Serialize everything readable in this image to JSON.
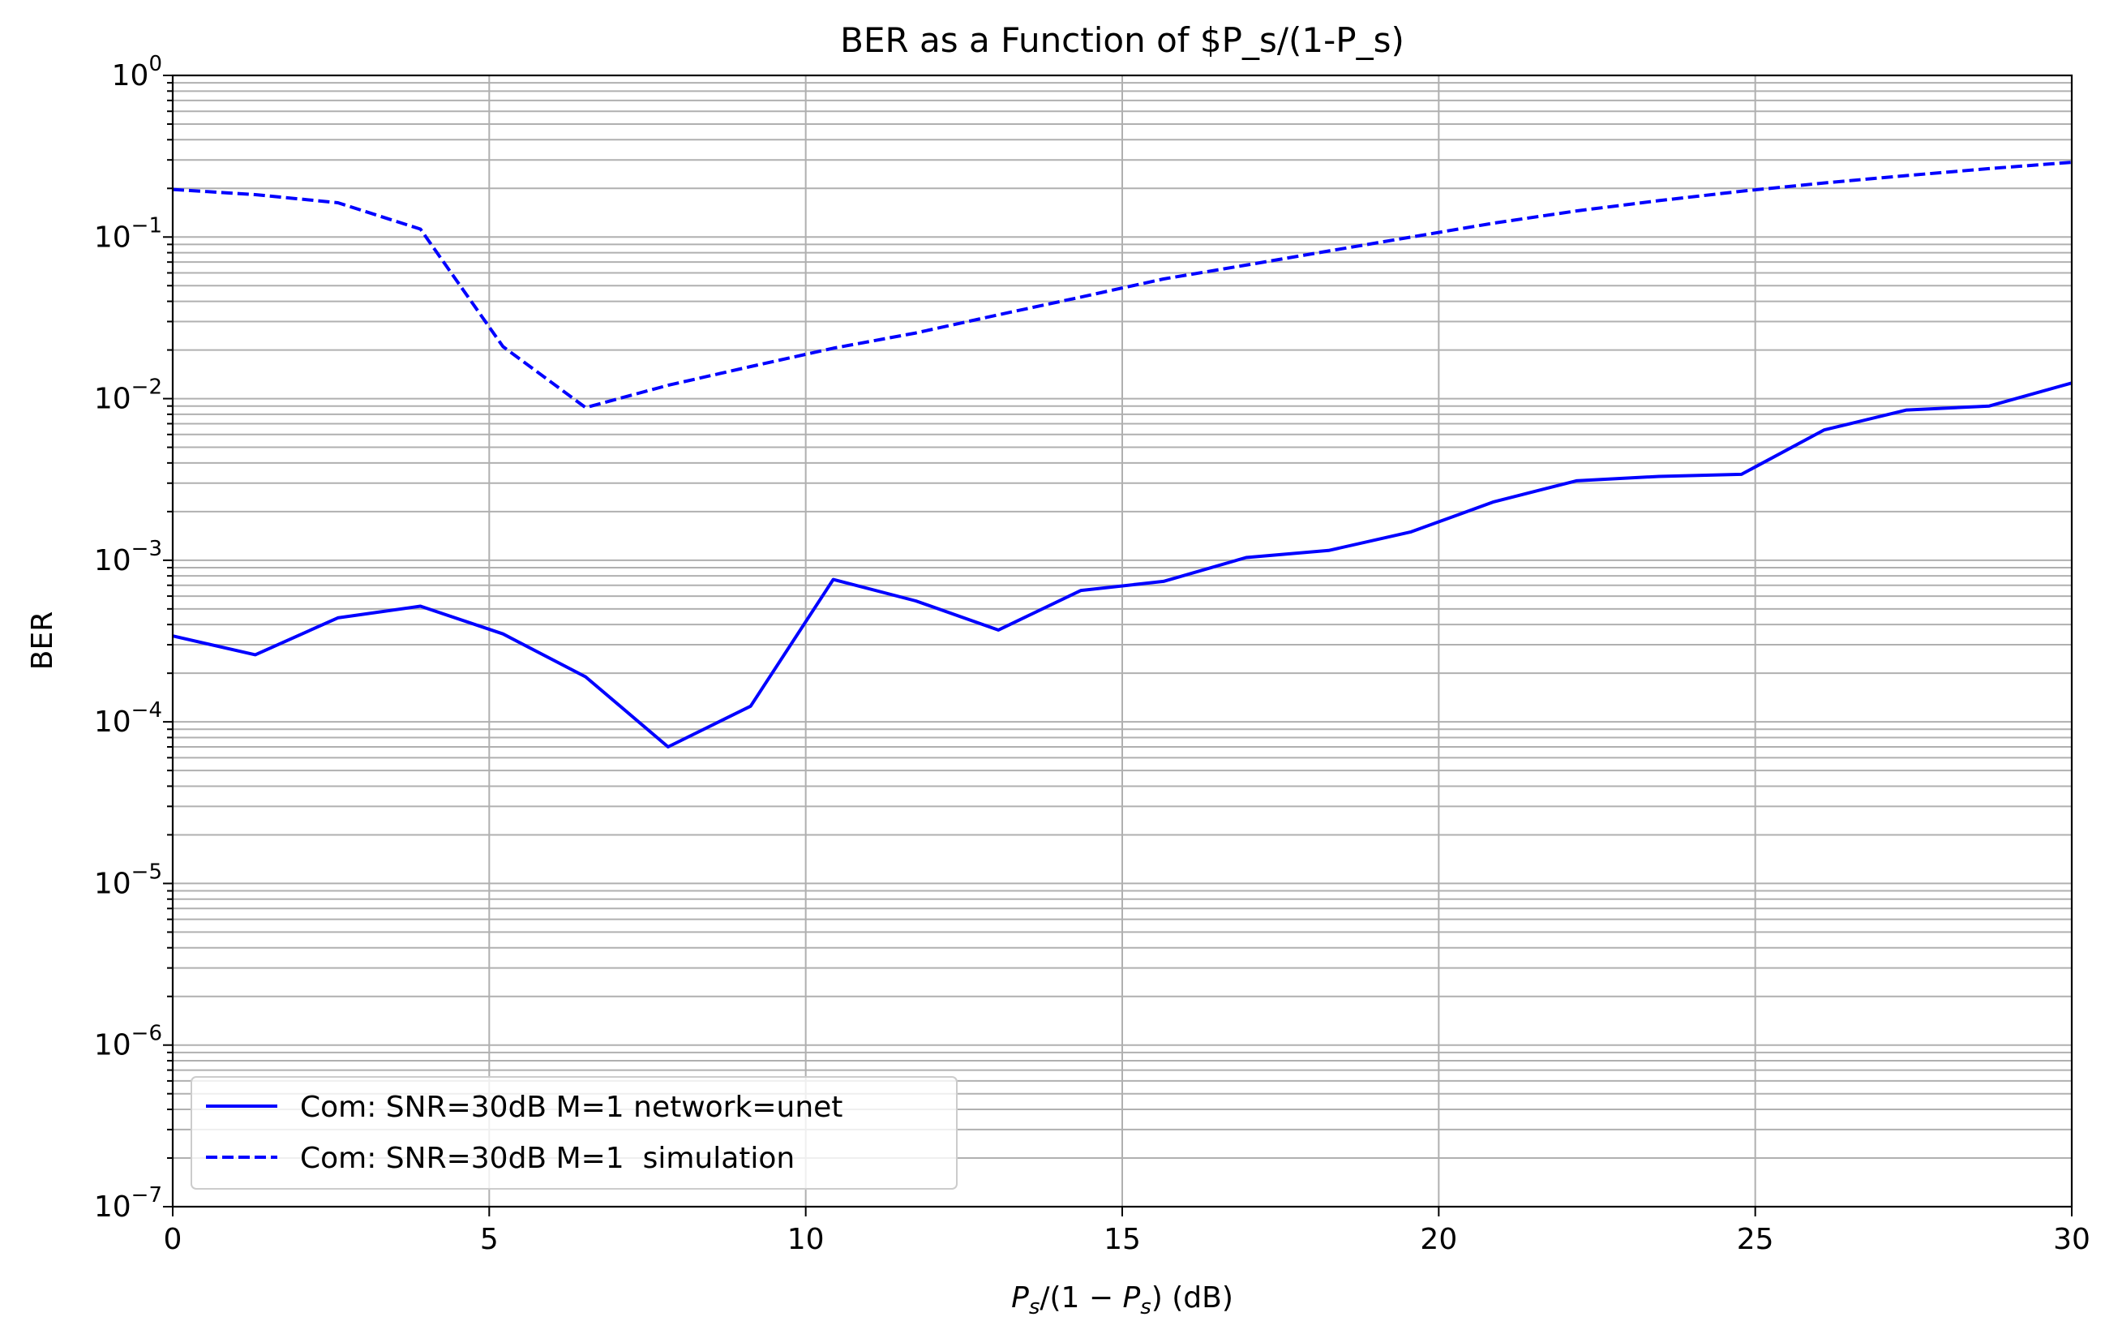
{
  "chart_data": {
    "type": "line",
    "title": "BER as a Function of $P_s/(1-P_s)",
    "xlabel": {
      "text_1": "P",
      "sub_1": "s",
      "text_2": "/(1 − ",
      "text_3": "P",
      "sub_2": "s",
      "text_4": ") (dB)"
    },
    "ylabel": "BER",
    "xlim": [
      0,
      30
    ],
    "ylim": [
      1e-07,
      1
    ],
    "yscale": "log",
    "grid": true,
    "legend_position": "lower-left",
    "xticks": [
      0,
      5,
      10,
      15,
      20,
      25,
      30
    ],
    "xtick_labels": [
      "0",
      "5",
      "10",
      "15",
      "20",
      "25",
      "30"
    ],
    "ytick_exponents": [
      0,
      -1,
      -2,
      -3,
      -4,
      -5,
      -6,
      -7
    ],
    "ytick_base": "10",
    "ytick_labels": [
      "0",
      "−1",
      "−2",
      "−3",
      "−4",
      "−5",
      "−6",
      "−7"
    ],
    "x": [
      0,
      1.304,
      2.609,
      3.913,
      5.217,
      6.522,
      7.826,
      9.13,
      10.435,
      11.739,
      13.043,
      14.348,
      15.652,
      16.957,
      18.261,
      19.565,
      20.87,
      22.174,
      23.478,
      24.783,
      26.087,
      27.391,
      28.696,
      30
    ],
    "series": [
      {
        "name": "Com: SNR=30dB M=1 network=unet",
        "style": "solid",
        "color": "#0000ff",
        "values": [
          0.00034,
          0.00026,
          0.00044,
          0.00052,
          0.00035,
          0.00019,
          7e-05,
          0.000125,
          0.00076,
          0.00056,
          0.00037,
          0.00065,
          0.00074,
          0.00104,
          0.00115,
          0.0015,
          0.0023,
          0.0031,
          0.0033,
          0.0034,
          0.0064,
          0.0085,
          0.009,
          0.0125
        ]
      },
      {
        "name": "Com: SNR=30dB M=1  simulation",
        "style": "dashed",
        "color": "#0000ff",
        "values": [
          0.197,
          0.183,
          0.163,
          0.112,
          0.021,
          0.0088,
          0.0121,
          0.0158,
          0.0205,
          0.0255,
          0.033,
          0.0425,
          0.055,
          0.067,
          0.082,
          0.1,
          0.122,
          0.145,
          0.168,
          0.192,
          0.216,
          0.24,
          0.265,
          0.29
        ]
      }
    ]
  }
}
